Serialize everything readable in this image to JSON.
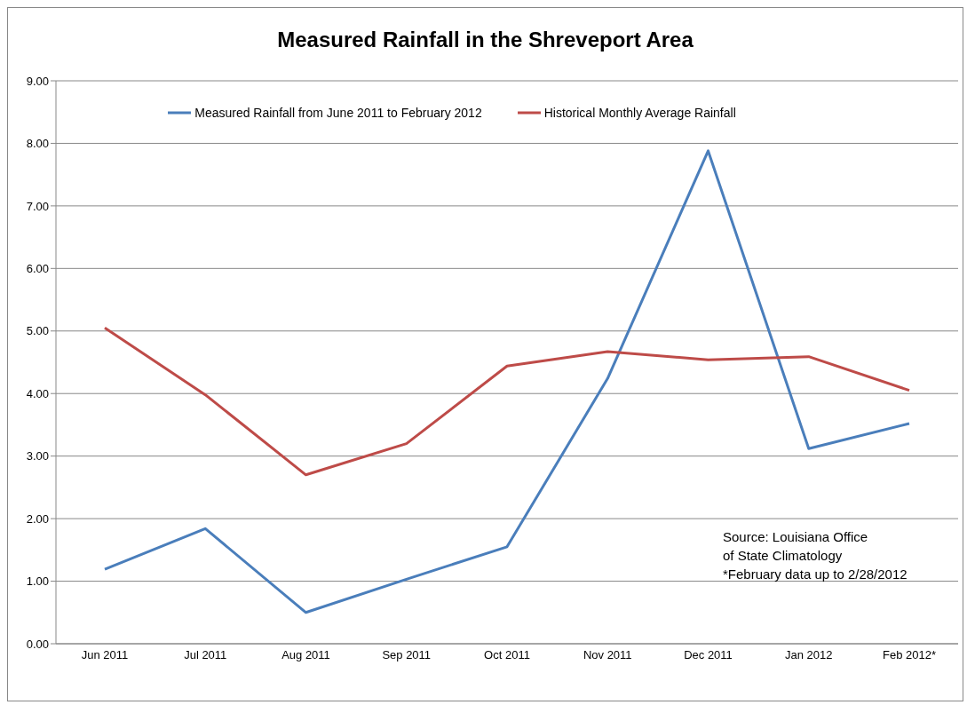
{
  "chart_data": {
    "type": "line",
    "title": "Measured Rainfall in the Shreveport Area",
    "categories": [
      "Jun 2011",
      "Jul 2011",
      "Aug 2011",
      "Sep 2011",
      "Oct 2011",
      "Nov 2011",
      "Dec 2011",
      "Jan 2012",
      "Feb 2012*"
    ],
    "series": [
      {
        "name": "Measured Rainfall from June 2011 to February 2012",
        "color": "#4a7ebb",
        "values": [
          1.19,
          1.84,
          0.5,
          1.03,
          1.55,
          4.24,
          7.88,
          3.12,
          3.52
        ]
      },
      {
        "name": "Historical Monthly Average Rainfall",
        "color": "#be4b48",
        "values": [
          5.05,
          3.98,
          2.7,
          3.2,
          4.44,
          4.67,
          4.54,
          4.59,
          4.05
        ]
      }
    ],
    "ylim": [
      0,
      9
    ],
    "yticks": [
      {
        "value": 0,
        "label": "0.00"
      },
      {
        "value": 1,
        "label": "1.00"
      },
      {
        "value": 2,
        "label": "2.00"
      },
      {
        "value": 3,
        "label": "3.00"
      },
      {
        "value": 4,
        "label": "4.00"
      },
      {
        "value": 5,
        "label": "5.00"
      },
      {
        "value": 6,
        "label": "6.00"
      },
      {
        "value": 7,
        "label": "7.00"
      },
      {
        "value": 8,
        "label": "8.00"
      },
      {
        "value": 9,
        "label": "9.00"
      }
    ],
    "grid": "y",
    "legend": "top",
    "marker": "none",
    "line_style": "solid",
    "annotations": [
      "Source: Louisiana Office\nof State Climatology\n*February data up to 2/28/2012"
    ]
  }
}
